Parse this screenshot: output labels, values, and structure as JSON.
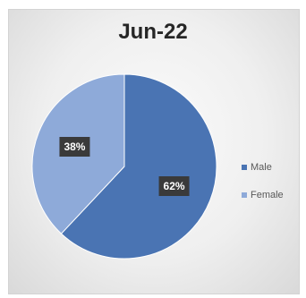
{
  "chart_data": {
    "type": "pie",
    "title": "Jun-22",
    "categories": [
      "Male",
      "Female"
    ],
    "values": [
      62,
      38
    ],
    "data_labels": [
      "62%",
      "38%"
    ],
    "colors": [
      "#4a74b3",
      "#8eaad9"
    ],
    "legend_position": "right"
  }
}
